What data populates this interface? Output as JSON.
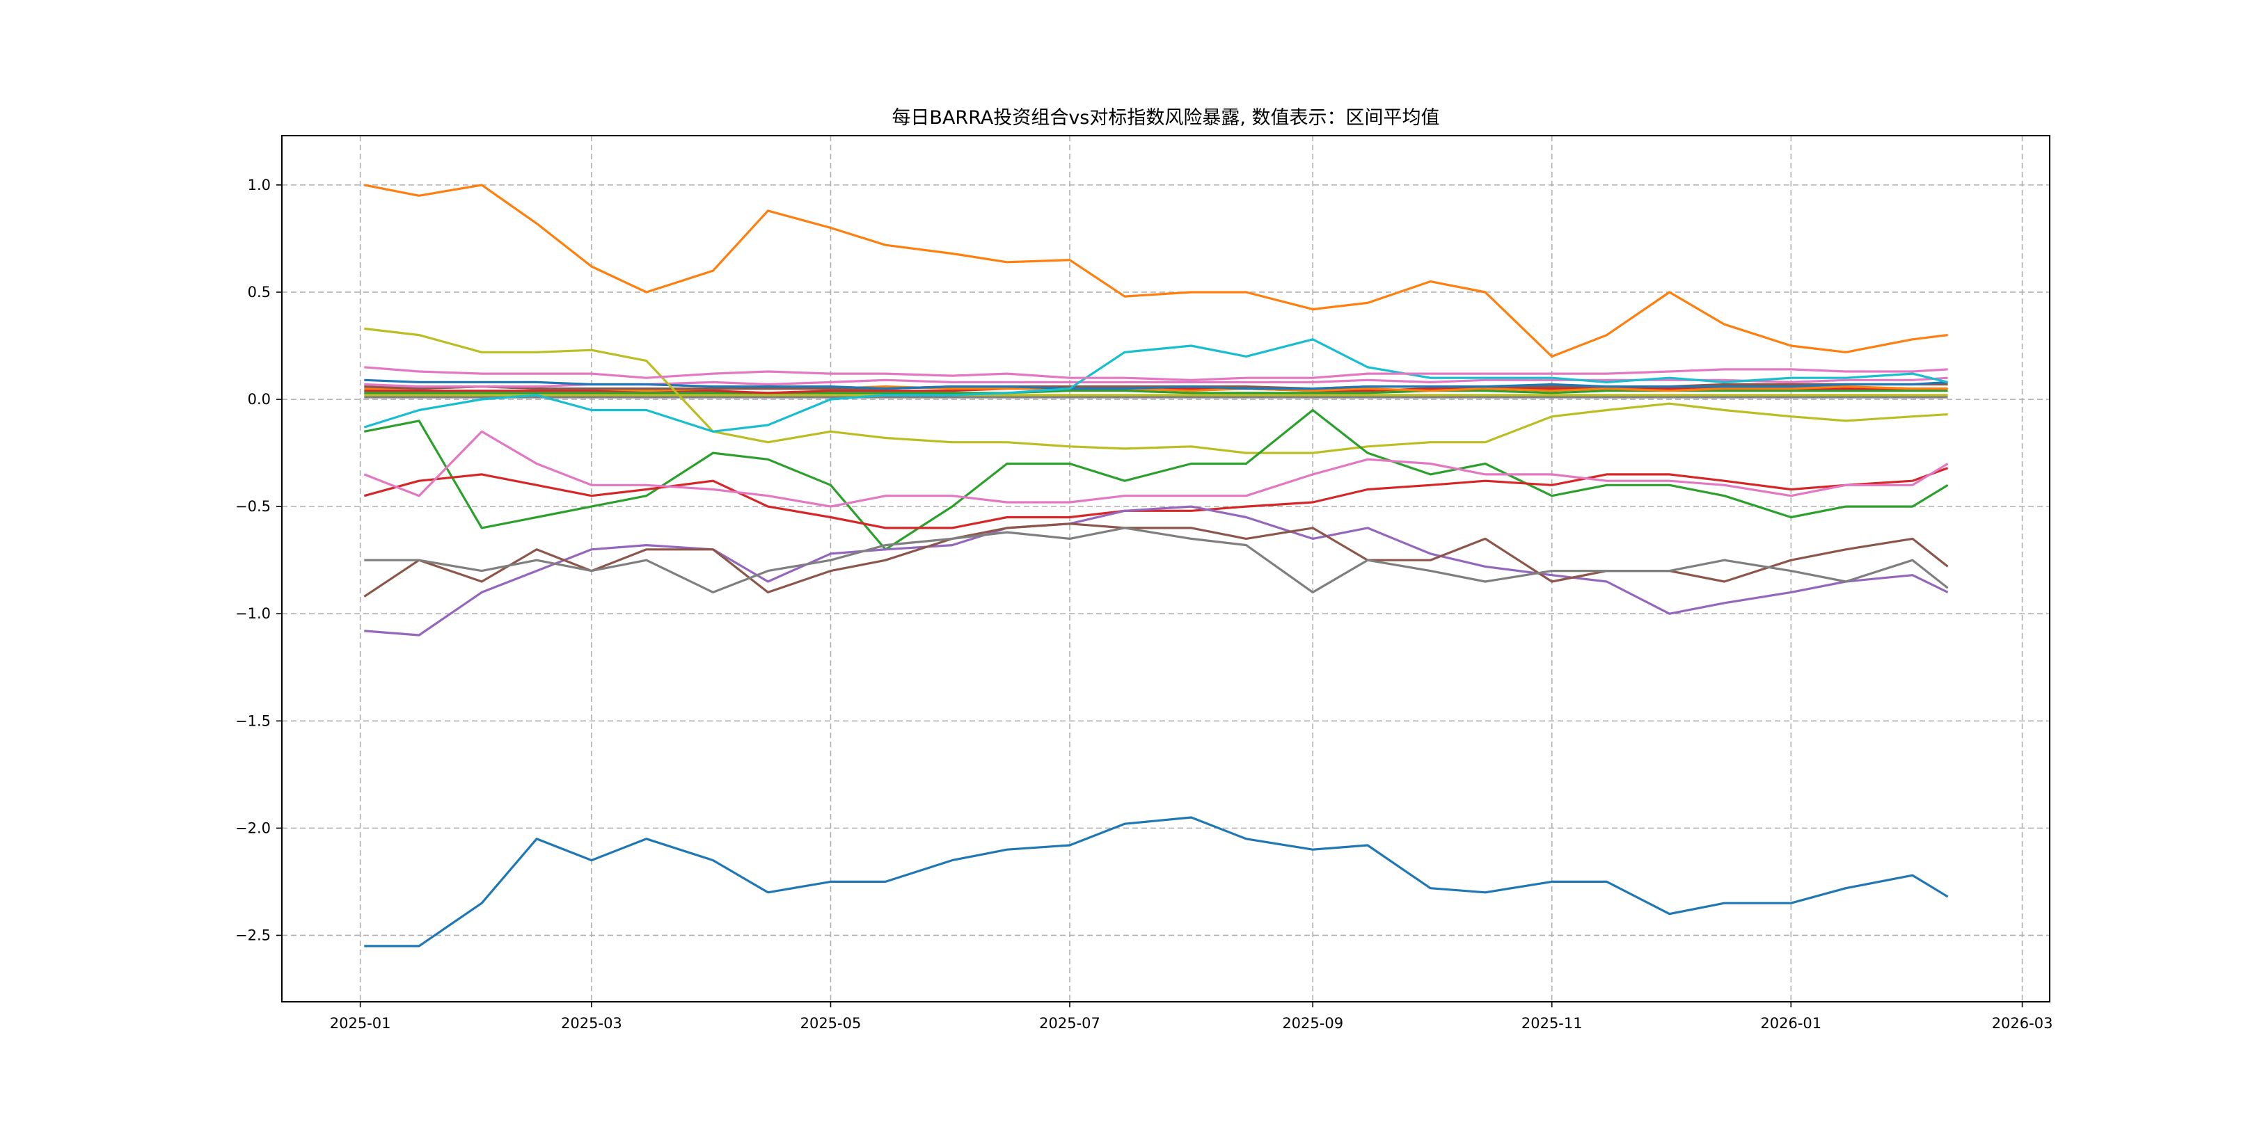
{
  "chart_data": {
    "type": "line",
    "title": "每日BARRA投资组合vs对标指数风险暴露, 数值表示：区间平均值",
    "xlabel": "",
    "ylabel": "",
    "xlim": [
      "2024-12-12",
      "2026-03-08"
    ],
    "ylim": [
      -2.81,
      1.23
    ],
    "grid": true,
    "legend": "none",
    "x_ticks": [
      "2025-01",
      "2025-03",
      "2025-05",
      "2025-07",
      "2025-09",
      "2025-11",
      "2026-01",
      "2026-03"
    ],
    "y_ticks": [
      1.0,
      0.5,
      0.0,
      -0.5,
      -1.0,
      -1.5,
      -2.0,
      -2.5
    ],
    "y_tick_labels": [
      "1.0",
      "0.5",
      "0.0",
      "−0.5",
      "−1.0",
      "−1.5",
      "−2.0",
      "−2.5"
    ],
    "x": [
      "2025-01-02",
      "2025-01-16",
      "2025-02-01",
      "2025-02-15",
      "2025-03-01",
      "2025-03-15",
      "2025-04-01",
      "2025-04-15",
      "2025-05-01",
      "2025-05-15",
      "2025-06-01",
      "2025-06-15",
      "2025-07-01",
      "2025-07-15",
      "2025-08-01",
      "2025-08-15",
      "2025-09-01",
      "2025-09-15",
      "2025-10-01",
      "2025-10-15",
      "2025-11-01",
      "2025-11-15",
      "2025-12-01",
      "2025-12-15",
      "2026-01-01",
      "2026-01-15",
      "2026-02-01",
      "2026-02-10"
    ],
    "series": [
      {
        "name": "s_near0_gray",
        "color": "#7f7f7f",
        "values": [
          0.01,
          0.01,
          0.01,
          0.01,
          0.01,
          0.01,
          0.01,
          0.01,
          0.01,
          0.01,
          0.01,
          0.01,
          0.01,
          0.01,
          0.01,
          0.01,
          0.01,
          0.01,
          0.01,
          0.01,
          0.01,
          0.01,
          0.01,
          0.01,
          0.01,
          0.01,
          0.01,
          0.01
        ]
      },
      {
        "name": "s_near0_olive",
        "color": "#bcbd22",
        "values": [
          0.02,
          0.02,
          0.02,
          0.02,
          0.02,
          0.02,
          0.02,
          0.02,
          0.02,
          0.02,
          0.02,
          0.02,
          0.02,
          0.02,
          0.02,
          0.02,
          0.02,
          0.02,
          0.02,
          0.02,
          0.02,
          0.02,
          0.02,
          0.02,
          0.02,
          0.02,
          0.02,
          0.02
        ]
      },
      {
        "name": "s_near0_green",
        "color": "#2ca02c",
        "values": [
          0.03,
          0.03,
          0.03,
          0.03,
          0.03,
          0.03,
          0.03,
          0.03,
          0.03,
          0.03,
          0.03,
          0.03,
          0.04,
          0.04,
          0.03,
          0.03,
          0.03,
          0.03,
          0.04,
          0.04,
          0.03,
          0.04,
          0.04,
          0.04,
          0.04,
          0.04,
          0.04,
          0.04
        ]
      },
      {
        "name": "s_near0_red",
        "color": "#d62728",
        "values": [
          0.04,
          0.04,
          0.04,
          0.04,
          0.04,
          0.04,
          0.04,
          0.03,
          0.04,
          0.04,
          0.04,
          0.05,
          0.05,
          0.05,
          0.05,
          0.05,
          0.04,
          0.04,
          0.05,
          0.05,
          0.05,
          0.05,
          0.05,
          0.05,
          0.05,
          0.05,
          0.05,
          0.05
        ]
      },
      {
        "name": "s_near0_orange",
        "color": "#ff7f0e",
        "values": [
          0.05,
          0.05,
          0.06,
          0.05,
          0.05,
          0.04,
          0.05,
          0.05,
          0.05,
          0.06,
          0.05,
          0.05,
          0.05,
          0.05,
          0.04,
          0.05,
          0.04,
          0.05,
          0.04,
          0.05,
          0.04,
          0.05,
          0.04,
          0.05,
          0.05,
          0.06,
          0.05,
          0.05
        ]
      },
      {
        "name": "s_near0_brown",
        "color": "#8c564b",
        "values": [
          0.06,
          0.05,
          0.06,
          0.05,
          0.05,
          0.05,
          0.05,
          0.05,
          0.05,
          0.05,
          0.06,
          0.06,
          0.06,
          0.06,
          0.06,
          0.06,
          0.05,
          0.06,
          0.06,
          0.06,
          0.06,
          0.06,
          0.06,
          0.07,
          0.07,
          0.07,
          0.07,
          0.07
        ]
      },
      {
        "name": "s_near0_pink",
        "color": "#e377c2",
        "values": [
          0.07,
          0.06,
          0.06,
          0.06,
          0.07,
          0.07,
          0.08,
          0.07,
          0.08,
          0.09,
          0.08,
          0.08,
          0.08,
          0.08,
          0.08,
          0.08,
          0.08,
          0.09,
          0.08,
          0.09,
          0.09,
          0.09,
          0.09,
          0.09,
          0.08,
          0.09,
          0.09,
          0.1
        ]
      },
      {
        "name": "s_near0_blue",
        "color": "#1f77b4",
        "values": [
          0.09,
          0.08,
          0.08,
          0.08,
          0.07,
          0.07,
          0.06,
          0.06,
          0.06,
          0.05,
          0.06,
          0.06,
          0.05,
          0.05,
          0.06,
          0.05,
          0.05,
          0.06,
          0.06,
          0.06,
          0.07,
          0.06,
          0.06,
          0.06,
          0.06,
          0.07,
          0.07,
          0.08
        ]
      },
      {
        "name": "s_orange",
        "color": "#ff7f0e",
        "values": [
          1.0,
          0.95,
          1.0,
          0.82,
          0.62,
          0.5,
          0.6,
          0.88,
          0.8,
          0.72,
          0.68,
          0.64,
          0.65,
          0.48,
          0.5,
          0.5,
          0.42,
          0.45,
          0.55,
          0.5,
          0.2,
          0.3,
          0.5,
          0.35,
          0.25,
          0.22,
          0.28,
          0.3
        ]
      },
      {
        "name": "s_olive",
        "color": "#bcbd22",
        "values": [
          0.33,
          0.3,
          0.22,
          0.22,
          0.23,
          0.18,
          -0.15,
          -0.2,
          -0.15,
          -0.18,
          -0.2,
          -0.2,
          -0.22,
          -0.23,
          -0.22,
          -0.25,
          -0.25,
          -0.22,
          -0.2,
          -0.2,
          -0.08,
          -0.05,
          -0.02,
          -0.05,
          -0.08,
          -0.1,
          -0.08,
          -0.07
        ]
      },
      {
        "name": "s_cyan",
        "color": "#17becf",
        "values": [
          -0.13,
          -0.05,
          0.0,
          0.02,
          -0.05,
          -0.05,
          -0.15,
          -0.12,
          0.0,
          0.02,
          0.02,
          0.03,
          0.05,
          0.22,
          0.25,
          0.2,
          0.28,
          0.15,
          0.1,
          0.1,
          0.1,
          0.08,
          0.1,
          0.08,
          0.1,
          0.1,
          0.12,
          0.08
        ]
      },
      {
        "name": "s_pink_upper",
        "color": "#e377c2",
        "values": [
          0.15,
          0.13,
          0.12,
          0.12,
          0.12,
          0.1,
          0.12,
          0.13,
          0.12,
          0.12,
          0.11,
          0.12,
          0.1,
          0.1,
          0.09,
          0.1,
          0.1,
          0.12,
          0.12,
          0.12,
          0.12,
          0.12,
          0.13,
          0.14,
          0.14,
          0.13,
          0.13,
          0.14
        ]
      },
      {
        "name": "s_green",
        "color": "#2ca02c",
        "values": [
          -0.15,
          -0.1,
          -0.6,
          -0.55,
          -0.5,
          -0.45,
          -0.25,
          -0.28,
          -0.4,
          -0.7,
          -0.5,
          -0.3,
          -0.3,
          -0.38,
          -0.3,
          -0.3,
          -0.05,
          -0.25,
          -0.35,
          -0.3,
          -0.45,
          -0.4,
          -0.4,
          -0.45,
          -0.55,
          -0.5,
          -0.5,
          -0.4
        ]
      },
      {
        "name": "s_red",
        "color": "#d62728",
        "values": [
          -0.45,
          -0.38,
          -0.35,
          -0.4,
          -0.45,
          -0.42,
          -0.38,
          -0.5,
          -0.55,
          -0.6,
          -0.6,
          -0.55,
          -0.55,
          -0.52,
          -0.52,
          -0.5,
          -0.48,
          -0.42,
          -0.4,
          -0.38,
          -0.4,
          -0.35,
          -0.35,
          -0.38,
          -0.42,
          -0.4,
          -0.38,
          -0.32
        ]
      },
      {
        "name": "s_pink_lower",
        "color": "#e377c2",
        "values": [
          -0.35,
          -0.45,
          -0.15,
          -0.3,
          -0.4,
          -0.4,
          -0.42,
          -0.45,
          -0.5,
          -0.45,
          -0.45,
          -0.48,
          -0.48,
          -0.45,
          -0.45,
          -0.45,
          -0.35,
          -0.28,
          -0.3,
          -0.35,
          -0.35,
          -0.38,
          -0.38,
          -0.4,
          -0.45,
          -0.4,
          -0.4,
          -0.3
        ]
      },
      {
        "name": "s_purple",
        "color": "#9467bd",
        "values": [
          -1.08,
          -1.1,
          -0.9,
          -0.8,
          -0.7,
          -0.68,
          -0.7,
          -0.85,
          -0.72,
          -0.7,
          -0.68,
          -0.6,
          -0.58,
          -0.52,
          -0.5,
          -0.55,
          -0.65,
          -0.6,
          -0.72,
          -0.78,
          -0.82,
          -0.85,
          -1.0,
          -0.95,
          -0.9,
          -0.85,
          -0.82,
          -0.9
        ]
      },
      {
        "name": "s_brown",
        "color": "#8c564b",
        "values": [
          -0.92,
          -0.75,
          -0.85,
          -0.7,
          -0.8,
          -0.7,
          -0.7,
          -0.9,
          -0.8,
          -0.75,
          -0.65,
          -0.6,
          -0.58,
          -0.6,
          -0.6,
          -0.65,
          -0.6,
          -0.75,
          -0.75,
          -0.65,
          -0.85,
          -0.8,
          -0.8,
          -0.85,
          -0.75,
          -0.7,
          -0.65,
          -0.78
        ]
      },
      {
        "name": "s_gray",
        "color": "#7f7f7f",
        "values": [
          -0.75,
          -0.75,
          -0.8,
          -0.75,
          -0.8,
          -0.75,
          -0.9,
          -0.8,
          -0.75,
          -0.68,
          -0.65,
          -0.62,
          -0.65,
          -0.6,
          -0.65,
          -0.68,
          -0.9,
          -0.75,
          -0.8,
          -0.85,
          -0.8,
          -0.8,
          -0.8,
          -0.75,
          -0.8,
          -0.85,
          -0.75,
          -0.88
        ]
      },
      {
        "name": "s_blue",
        "color": "#1f77b4",
        "values": [
          -2.55,
          -2.55,
          -2.35,
          -2.05,
          -2.15,
          -2.05,
          -2.15,
          -2.3,
          -2.25,
          -2.25,
          -2.15,
          -2.1,
          -2.08,
          -1.98,
          -1.95,
          -2.05,
          -2.1,
          -2.08,
          -2.28,
          -2.3,
          -2.25,
          -2.25,
          -2.4,
          -2.35,
          -2.35,
          -2.28,
          -2.22,
          -2.32
        ]
      }
    ]
  }
}
